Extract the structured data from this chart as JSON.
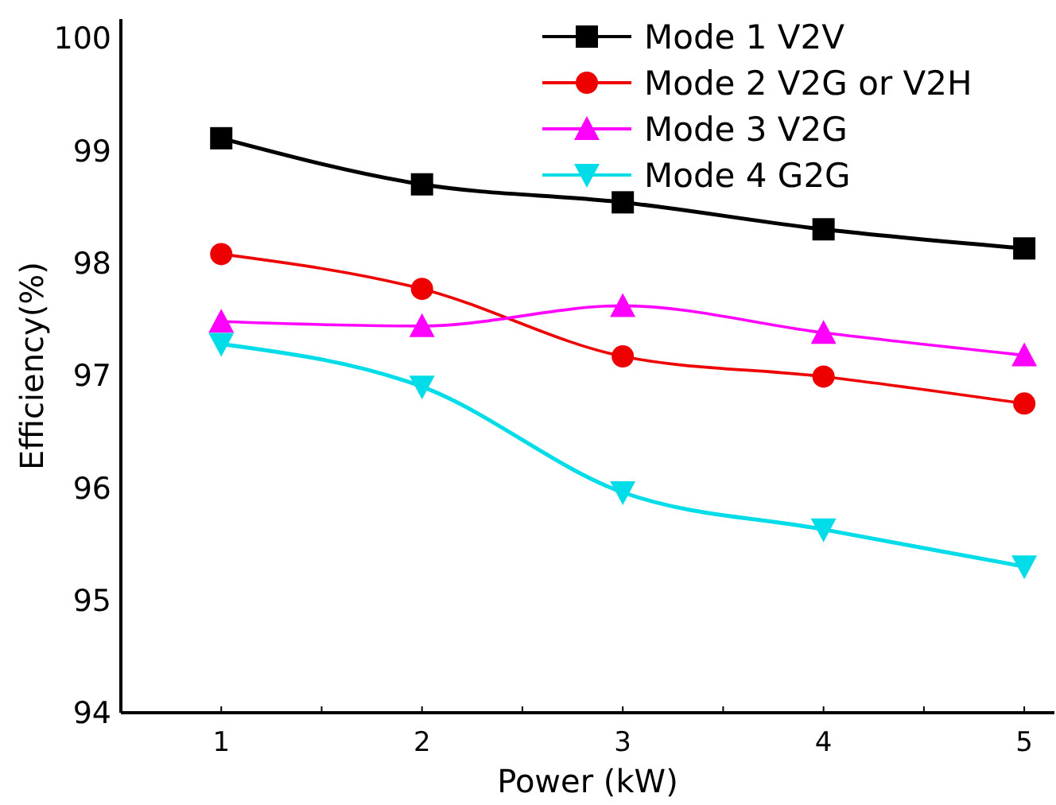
{
  "chart_data": {
    "type": "line",
    "xlabel": "Power (kW)",
    "ylabel": "Efficiency(%)",
    "x": [
      1,
      2,
      3,
      4,
      5
    ],
    "xlim": [
      0.5,
      5.15
    ],
    "xticks": [
      1,
      {
        "value": 1.5,
        "label": null
      },
      2,
      {
        "value": 2.5,
        "label": null
      },
      3,
      {
        "value": 3.5,
        "label": null
      },
      4,
      {
        "value": 4.5,
        "label": null
      },
      5
    ],
    "ylim": [
      94,
      100.17
    ],
    "yticks": [
      94,
      95,
      96,
      97,
      98,
      99,
      100
    ],
    "grid": false,
    "legend": "top right",
    "line_style": "solid",
    "series": [
      {
        "name": "Mode 1 V2V",
        "color": "#000000",
        "marker": "square",
        "values": [
          99.11,
          98.7,
          98.54,
          98.3,
          98.13
        ]
      },
      {
        "name": "Mode 2 V2G or V2H",
        "color": "#ee0000",
        "marker": "circle",
        "values": [
          98.08,
          97.77,
          97.17,
          96.99,
          96.75
        ]
      },
      {
        "name": "Mode 3 V2G",
        "color": "#ff00ff",
        "marker": "triangle",
        "values": [
          97.48,
          97.44,
          97.62,
          97.38,
          97.18
        ]
      },
      {
        "name": "Mode 4 G2G",
        "color": "#00dce8",
        "marker": "triangle-down",
        "values": [
          97.28,
          96.9,
          95.96,
          95.63,
          95.3
        ]
      }
    ]
  }
}
